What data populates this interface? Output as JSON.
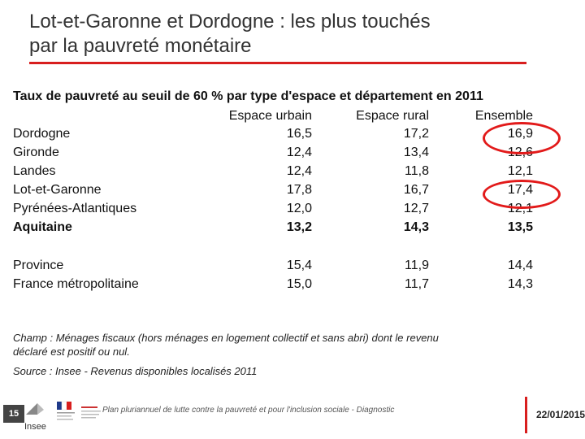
{
  "slide": {
    "title_line1": "Lot-et-Garonne et Dordogne : les plus touchés",
    "title_line2": "par la pauvreté monétaire"
  },
  "table": {
    "title": "Taux de pauvreté au seuil de 60 %  par type d'espace et département en 2011",
    "headers": [
      "Espace urbain",
      "Espace rural",
      "Ensemble"
    ],
    "rows": [
      {
        "label": "Dordogne",
        "urbain": "16,5",
        "rural": "17,2",
        "ensemble": "16,9",
        "bold": false,
        "circled": true
      },
      {
        "label": "Gironde",
        "urbain": "12,4",
        "rural": "13,4",
        "ensemble": "12,6",
        "bold": false,
        "circled": false
      },
      {
        "label": "Landes",
        "urbain": "12,4",
        "rural": "11,8",
        "ensemble": "12,1",
        "bold": false,
        "circled": false
      },
      {
        "label": "Lot-et-Garonne",
        "urbain": "17,8",
        "rural": "16,7",
        "ensemble": "17,4",
        "bold": false,
        "circled": true
      },
      {
        "label": "Pyrénées-Atlantiques",
        "urbain": "12,0",
        "rural": "12,7",
        "ensemble": "12,1",
        "bold": false,
        "circled": false
      },
      {
        "label": "Aquitaine",
        "urbain": "13,2",
        "rural": "14,3",
        "ensemble": "13,5",
        "bold": true,
        "circled": false
      },
      {
        "label": "Province",
        "urbain": "15,4",
        "rural": "11,9",
        "ensemble": "14,4",
        "bold": false,
        "circled": false
      },
      {
        "label": "France métropolitaine",
        "urbain": "15,0",
        "rural": "11,7",
        "ensemble": "14,3",
        "bold": false,
        "circled": false
      }
    ]
  },
  "notes": {
    "champ_line1": "Champ : Ménages fiscaux (hors ménages en logement collectif et sans abri) dont le revenu",
    "champ_line2": "déclaré est positif ou nul.",
    "source": "Source : Insee - Revenus disponibles localisés 2011"
  },
  "footer": {
    "page_number": "15",
    "logo_text": "Insee",
    "caption": "Plan pluriannuel de lutte contre la pauvreté et pour l'inclusion sociale - Diagnostic",
    "date": "22/01/2015"
  },
  "colors": {
    "accent": "#d81e1e",
    "circle": "#e21a1a"
  }
}
